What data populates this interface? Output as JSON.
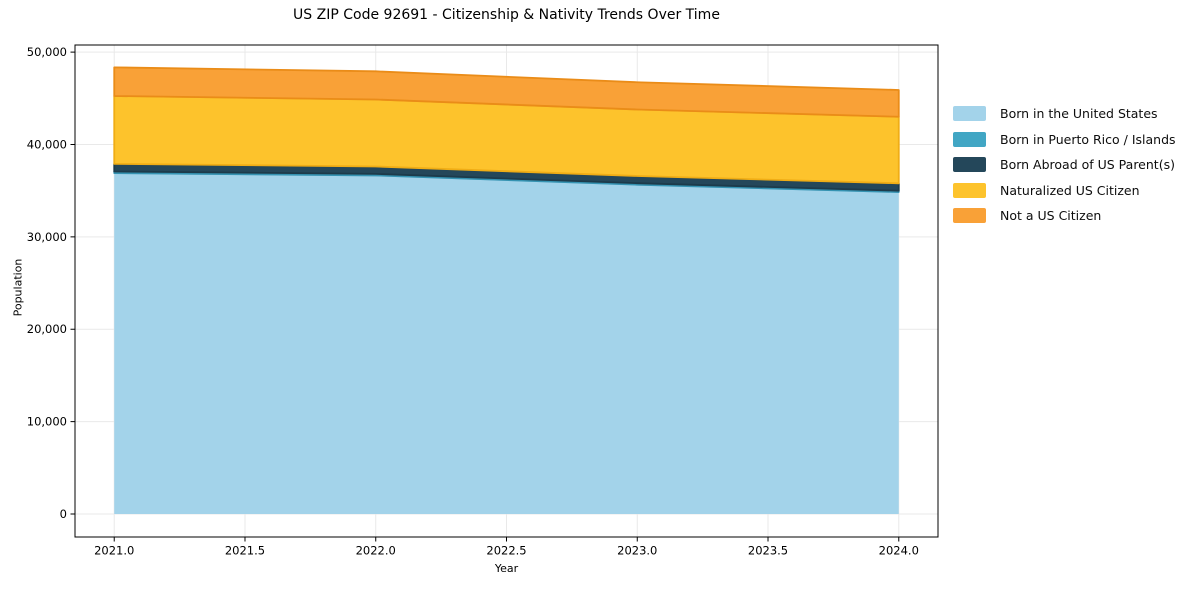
{
  "page": {
    "background": "#ffffff"
  },
  "chart_data": {
    "type": "area",
    "stacked": true,
    "title": "US ZIP Code 92691 - Citizenship & Nativity Trends Over Time",
    "xlabel": "Year",
    "ylabel": "Population",
    "x": [
      2021,
      2022,
      2023,
      2024
    ],
    "series": [
      {
        "name": "Born in the United States",
        "color": "#a3d3ea",
        "edge": "#8ac2dd",
        "values": [
          36900,
          36650,
          35650,
          34850
        ]
      },
      {
        "name": "Born in Puerto Rico / Islands",
        "color": "#41a6c4",
        "edge": "#3593b2",
        "values": [
          180,
          170,
          160,
          150
        ]
      },
      {
        "name": "Born Abroad of US Parent(s)",
        "color": "#24475a",
        "edge": "#1d3b4b",
        "values": [
          820,
          800,
          780,
          800
        ]
      },
      {
        "name": "Naturalized US Citizen",
        "color": "#fdc32c",
        "edge": "#f0ad15",
        "values": [
          7350,
          7250,
          7200,
          7200
        ]
      },
      {
        "name": "Not a US Citizen",
        "color": "#f9a137",
        "edge": "#ea8c18",
        "values": [
          3100,
          3050,
          2950,
          2900
        ]
      }
    ],
    "xlim": [
      2020.85,
      2024.15
    ],
    "ylim": [
      -2490,
      50770
    ],
    "xticks": {
      "values": [
        2021.0,
        2021.5,
        2022.0,
        2022.5,
        2023.0,
        2023.5,
        2024.0
      ],
      "labels": [
        "2021.0",
        "2021.5",
        "2022.0",
        "2022.5",
        "2023.0",
        "2023.5",
        "2024.0"
      ]
    },
    "yticks": {
      "values": [
        0,
        10000,
        20000,
        30000,
        40000,
        50000
      ],
      "labels": [
        "0",
        "10,000",
        "20,000",
        "30,000",
        "40,000",
        "50,000"
      ]
    },
    "grid": true,
    "grid_color": "#e9e9e9",
    "axis_color": "#000000",
    "text_color": "#000000",
    "legend_position": "right"
  }
}
